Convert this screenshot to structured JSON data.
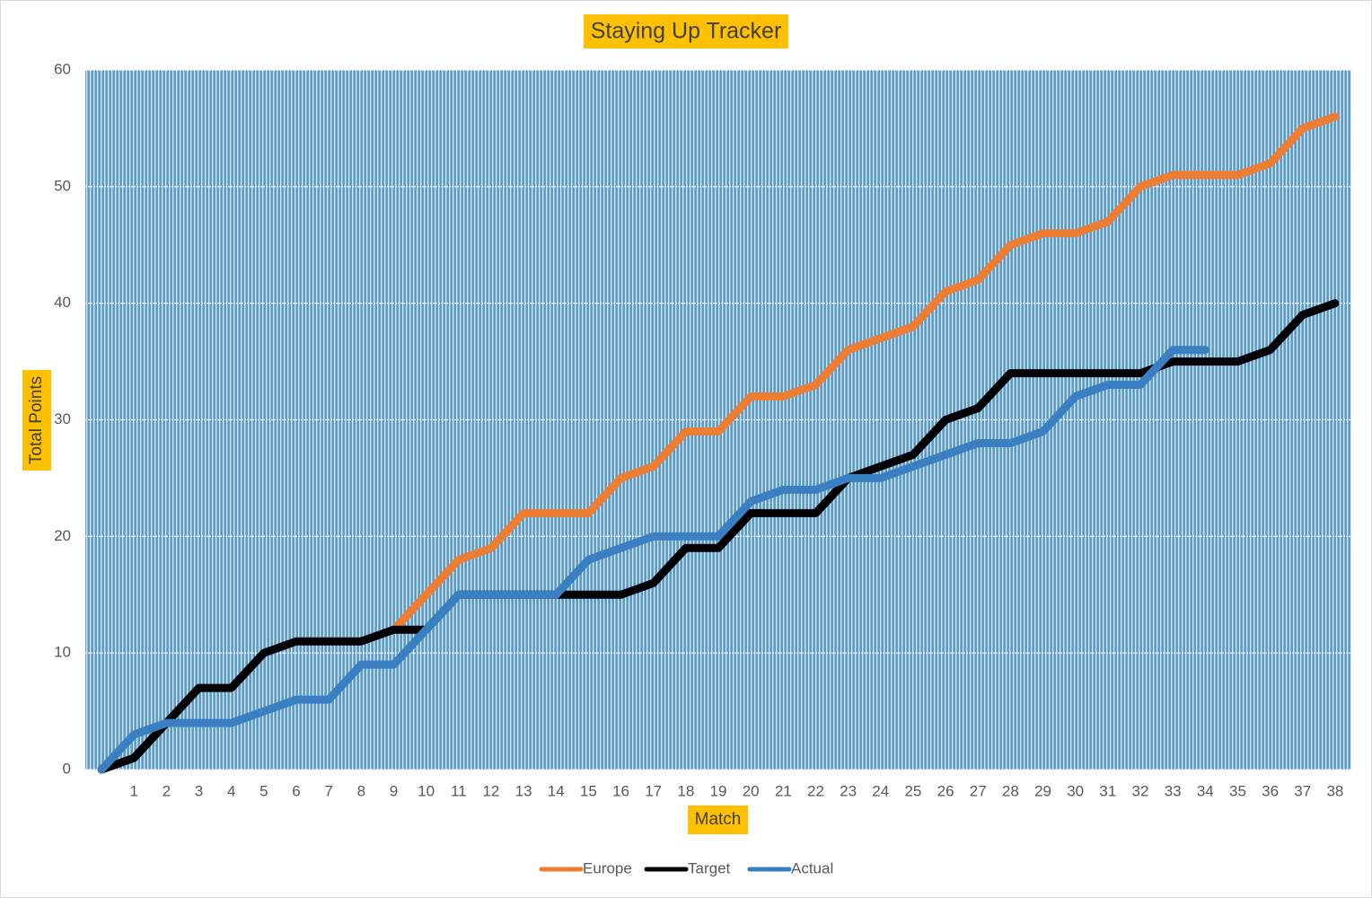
{
  "chart_data": {
    "type": "line",
    "title": "Staying Up Tracker",
    "x_label": "Match",
    "y_label": "Total Points",
    "categories": [
      null,
      "1",
      "2",
      "3",
      "4",
      "5",
      "6",
      "7",
      "8",
      "9",
      "10",
      "11",
      "12",
      "13",
      "14",
      "15",
      "16",
      "17",
      "18",
      "19",
      "20",
      "21",
      "22",
      "23",
      "24",
      "25",
      "26",
      "27",
      "28",
      "29",
      "30",
      "31",
      "32",
      "33",
      "34",
      "35",
      "36",
      "37",
      "38"
    ],
    "series": [
      {
        "name": "Europe",
        "color": "#ed7d31",
        "values": [
          0,
          1,
          4,
          7,
          7,
          10,
          11,
          11,
          11,
          12,
          15,
          18,
          19,
          22,
          22,
          22,
          25,
          26,
          29,
          29,
          32,
          32,
          33,
          36,
          37,
          38,
          41,
          42,
          45,
          46,
          46,
          47,
          50,
          51,
          51,
          51,
          52,
          55,
          56
        ]
      },
      {
        "name": "Target",
        "color": "#000000",
        "values": [
          0,
          1,
          4,
          7,
          7,
          10,
          11,
          11,
          11,
          12,
          12,
          15,
          15,
          15,
          15,
          15,
          15,
          16,
          19,
          19,
          22,
          22,
          22,
          25,
          26,
          27,
          30,
          31,
          34,
          34,
          34,
          34,
          34,
          35,
          35,
          35,
          36,
          39,
          40
        ]
      },
      {
        "name": "Actual",
        "color": "#3a7fc1",
        "values": [
          0,
          3,
          4,
          4,
          4,
          5,
          6,
          6,
          9,
          9,
          12,
          15,
          15,
          15,
          15,
          18,
          19,
          20,
          20,
          20,
          23,
          24,
          24,
          25,
          25,
          26,
          27,
          28,
          28,
          29,
          32,
          33,
          33,
          36,
          36,
          null,
          null,
          null,
          null
        ]
      }
    ],
    "ylim": [
      0,
      60
    ],
    "yticks": [
      0,
      10,
      20,
      30,
      40,
      50,
      60
    ],
    "grid": true,
    "legend": "bottom"
  }
}
